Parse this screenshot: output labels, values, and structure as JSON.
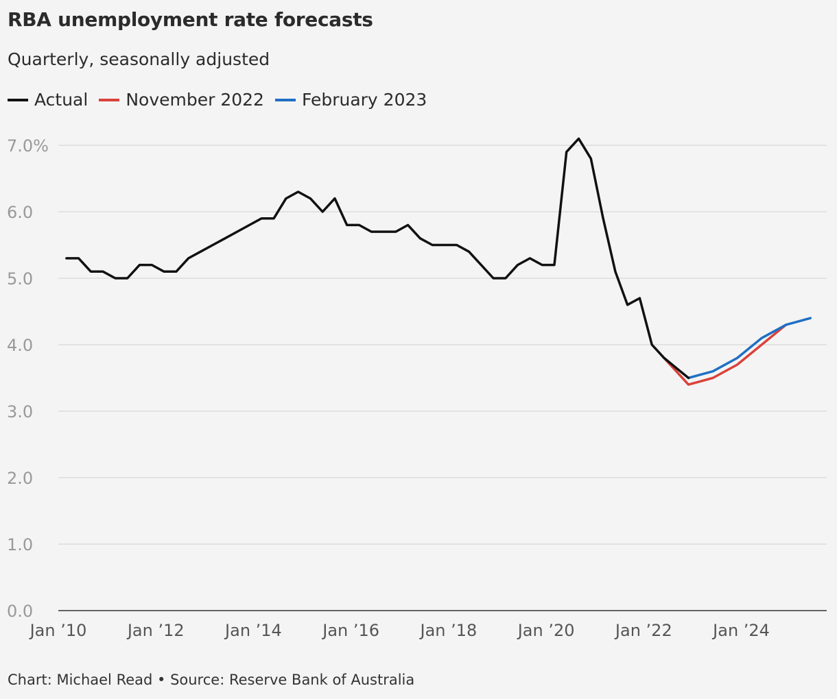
{
  "header": {
    "title": "RBA unemployment rate forecasts",
    "subtitle": "Quarterly, seasonally adjusted"
  },
  "legend": [
    {
      "label": "Actual",
      "color": "#111111"
    },
    {
      "label": "November 2022",
      "color": "#d9423a"
    },
    {
      "label": "February 2023",
      "color": "#1f6fc4"
    }
  ],
  "footer": "Chart: Michael Read • Source: Reserve Bank of Australia",
  "chart_data": {
    "type": "line",
    "title": "RBA unemployment rate forecasts",
    "subtitle": "Quarterly, seasonally adjusted",
    "xlabel": "",
    "ylabel": "",
    "ylim": [
      0,
      7
    ],
    "xlim": [
      "2010-01",
      "2025-10"
    ],
    "grid": true,
    "legend_position": "top-left",
    "y_ticks": [
      "0.0",
      "1.0",
      "2.0",
      "3.0",
      "4.0",
      "5.0",
      "6.0",
      "7.0%"
    ],
    "x_ticks": [
      "Jan ’10",
      "Jan ’12",
      "Jan ’14",
      "Jan ’16",
      "Jan ’18",
      "Jan ’20",
      "Jan ’22",
      "Jan ’24"
    ],
    "series": [
      {
        "name": "Actual",
        "color": "#111111",
        "points": [
          [
            "2010-03",
            5.3
          ],
          [
            "2010-06",
            5.3
          ],
          [
            "2010-09",
            5.1
          ],
          [
            "2010-12",
            5.1
          ],
          [
            "2011-03",
            5.0
          ],
          [
            "2011-06",
            5.0
          ],
          [
            "2011-09",
            5.2
          ],
          [
            "2011-12",
            5.2
          ],
          [
            "2012-03",
            5.1
          ],
          [
            "2012-06",
            5.1
          ],
          [
            "2012-09",
            5.3
          ],
          [
            "2012-12",
            5.4
          ],
          [
            "2013-03",
            5.5
          ],
          [
            "2013-06",
            5.6
          ],
          [
            "2013-09",
            5.7
          ],
          [
            "2013-12",
            5.8
          ],
          [
            "2014-03",
            5.9
          ],
          [
            "2014-06",
            5.9
          ],
          [
            "2014-09",
            6.2
          ],
          [
            "2014-12",
            6.3
          ],
          [
            "2015-03",
            6.2
          ],
          [
            "2015-06",
            6.0
          ],
          [
            "2015-09",
            6.2
          ],
          [
            "2015-12",
            5.8
          ],
          [
            "2016-03",
            5.8
          ],
          [
            "2016-06",
            5.7
          ],
          [
            "2016-09",
            5.7
          ],
          [
            "2016-12",
            5.7
          ],
          [
            "2017-03",
            5.8
          ],
          [
            "2017-06",
            5.6
          ],
          [
            "2017-09",
            5.5
          ],
          [
            "2017-12",
            5.5
          ],
          [
            "2018-03",
            5.5
          ],
          [
            "2018-06",
            5.4
          ],
          [
            "2018-09",
            5.2
          ],
          [
            "2018-12",
            5.0
          ],
          [
            "2019-03",
            5.0
          ],
          [
            "2019-06",
            5.2
          ],
          [
            "2019-09",
            5.3
          ],
          [
            "2019-12",
            5.2
          ],
          [
            "2020-03",
            5.2
          ],
          [
            "2020-06",
            6.9
          ],
          [
            "2020-09",
            7.1
          ],
          [
            "2020-12",
            6.8
          ],
          [
            "2021-03",
            5.9
          ],
          [
            "2021-06",
            5.1
          ],
          [
            "2021-09",
            4.6
          ],
          [
            "2021-12",
            4.7
          ],
          [
            "2022-03",
            4.0
          ],
          [
            "2022-06",
            3.8
          ],
          [
            "2022-09",
            3.65
          ],
          [
            "2022-12",
            3.5
          ]
        ]
      },
      {
        "name": "November 2022",
        "color": "#d9423a",
        "points": [
          [
            "2022-06",
            3.8
          ],
          [
            "2022-12",
            3.4
          ],
          [
            "2023-06",
            3.5
          ],
          [
            "2023-12",
            3.7
          ],
          [
            "2024-06",
            4.0
          ],
          [
            "2024-12",
            4.3
          ]
        ]
      },
      {
        "name": "February 2023",
        "color": "#1f6fc4",
        "points": [
          [
            "2022-12",
            3.5
          ],
          [
            "2023-06",
            3.6
          ],
          [
            "2023-12",
            3.8
          ],
          [
            "2024-06",
            4.1
          ],
          [
            "2024-12",
            4.3
          ],
          [
            "2025-06",
            4.4
          ]
        ]
      }
    ]
  }
}
